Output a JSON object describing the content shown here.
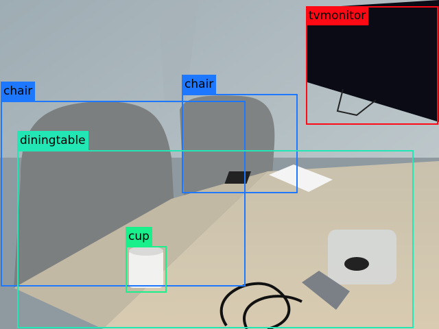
{
  "detections": [
    {
      "label": "tvmonitor",
      "color": "#ff0a14"
    },
    {
      "label": "chair",
      "color": "#1e78ff"
    },
    {
      "label": "chair",
      "color": "#1e78ff"
    },
    {
      "label": "diningtable",
      "color": "#22e6b4"
    },
    {
      "label": "cup",
      "color": "#19f08c"
    }
  ]
}
